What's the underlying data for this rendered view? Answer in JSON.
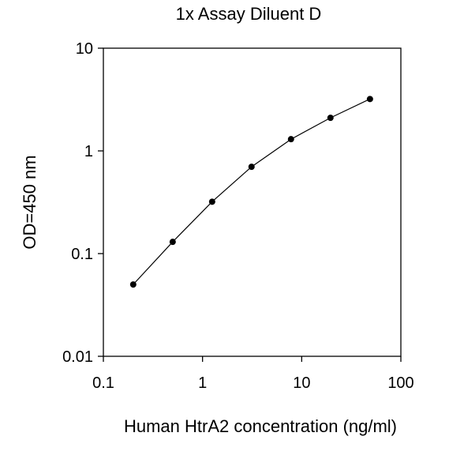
{
  "chart_data": {
    "type": "line",
    "title": "1x Assay Diluent D",
    "xlabel": "Human HtrA2 concentration (ng/ml)",
    "ylabel": "OD=450 nm",
    "x_scale": "log",
    "y_scale": "log",
    "xlim": [
      0.1,
      100
    ],
    "ylim": [
      0.01,
      10
    ],
    "x_ticks": [
      {
        "value": 0.1,
        "label": "0.1"
      },
      {
        "value": 1,
        "label": "1"
      },
      {
        "value": 10,
        "label": "10"
      },
      {
        "value": 100,
        "label": "100"
      }
    ],
    "y_ticks": [
      {
        "value": 0.01,
        "label": "0.01"
      },
      {
        "value": 0.1,
        "label": "0.1"
      },
      {
        "value": 1,
        "label": "1"
      },
      {
        "value": 10,
        "label": "10"
      }
    ],
    "grid": false,
    "legend": "none",
    "series": [
      {
        "x": [
          0.2,
          0.5,
          1.25,
          3.12,
          7.8,
          19.5,
          48.8
        ],
        "y": [
          0.05,
          0.13,
          0.32,
          0.7,
          1.3,
          2.1,
          3.2
        ],
        "color": "#000000",
        "marker": "circle"
      }
    ]
  }
}
